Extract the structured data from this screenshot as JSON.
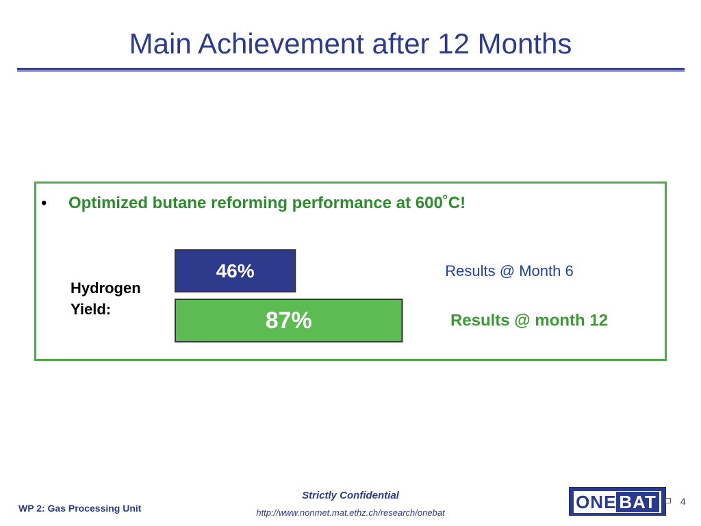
{
  "slide": {
    "title": "Main Achievement after 12 Months",
    "bullet_marker": "•",
    "bullet_text": "Optimized butane reforming performance at 600˚C!",
    "y_label": "Hydrogen Yield:"
  },
  "chart_data": {
    "type": "bar",
    "orientation": "horizontal",
    "categories": [
      "Results @ Month 6",
      "Results @ month 12"
    ],
    "values": [
      46,
      87
    ],
    "value_labels": [
      "46%",
      "87%"
    ],
    "ylabel": "Hydrogen Yield:",
    "xlim": [
      0,
      100
    ],
    "unit": "%",
    "grid": false,
    "colors": [
      "#2E3A8C",
      "#5DBB53"
    ],
    "category_label_colors": [
      "#1F3FA8",
      "#3C9A35"
    ]
  },
  "footer": {
    "left": "WP 2: Gas Processing Unit",
    "confidential": "Strictly Confidential",
    "url": "http://www.nonmet.mat.ethz.ch/research/onebat",
    "page_number": "4",
    "logo_part1": "ONE",
    "logo_part2": "BAT"
  },
  "colors": {
    "title": "#2E3A8C",
    "box_border": "#4FA84A",
    "bullet_text": "#2E8B2E"
  }
}
